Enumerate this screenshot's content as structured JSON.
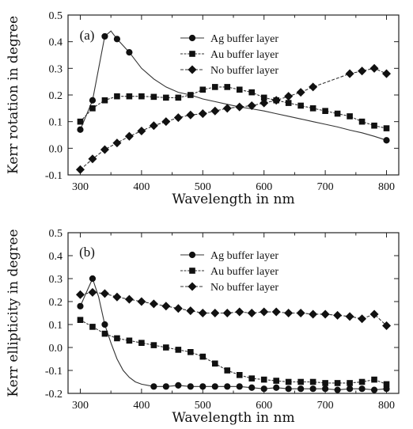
{
  "chart_data": [
    {
      "type": "line",
      "panel_label": "(a)",
      "xlabel": "Wavelength in nm",
      "ylabel": "Kerr rotation in degree",
      "xlim": [
        280,
        820
      ],
      "ylim": [
        -0.1,
        0.5
      ],
      "xticks": [
        300,
        400,
        500,
        600,
        700,
        800
      ],
      "yticks": [
        -0.1,
        0.0,
        0.1,
        0.2,
        0.3,
        0.4,
        0.5
      ],
      "legend_position": "top-right",
      "series": [
        {
          "name": "Ag buffer layer",
          "marker": "circle",
          "x": [
            300,
            320,
            340,
            360,
            380,
            800
          ],
          "y": [
            0.07,
            0.18,
            0.42,
            0.41,
            0.36,
            0.03
          ],
          "curve": [
            [
              300,
              0.07
            ],
            [
              320,
              0.18
            ],
            [
              340,
              0.42
            ],
            [
              350,
              0.44
            ],
            [
              360,
              0.41
            ],
            [
              380,
              0.36
            ],
            [
              400,
              0.3
            ],
            [
              420,
              0.26
            ],
            [
              440,
              0.23
            ],
            [
              460,
              0.21
            ],
            [
              480,
              0.2
            ],
            [
              500,
              0.185
            ],
            [
              520,
              0.175
            ],
            [
              540,
              0.165
            ],
            [
              560,
              0.155
            ],
            [
              580,
              0.148
            ],
            [
              600,
              0.14
            ],
            [
              620,
              0.13
            ],
            [
              640,
              0.12
            ],
            [
              660,
              0.11
            ],
            [
              680,
              0.1
            ],
            [
              700,
              0.09
            ],
            [
              720,
              0.08
            ],
            [
              740,
              0.068
            ],
            [
              760,
              0.058
            ],
            [
              780,
              0.045
            ],
            [
              800,
              0.03
            ]
          ]
        },
        {
          "name": "Au buffer layer",
          "marker": "square",
          "x": [
            300,
            320,
            340,
            360,
            380,
            400,
            420,
            440,
            460,
            480,
            500,
            520,
            540,
            560,
            580,
            600,
            620,
            640,
            660,
            680,
            700,
            720,
            740,
            760,
            780,
            800
          ],
          "y": [
            0.1,
            0.15,
            0.18,
            0.195,
            0.195,
            0.195,
            0.193,
            0.19,
            0.19,
            0.2,
            0.22,
            0.23,
            0.23,
            0.22,
            0.21,
            0.19,
            0.18,
            0.17,
            0.16,
            0.15,
            0.14,
            0.13,
            0.12,
            0.1,
            0.085,
            0.075
          ]
        },
        {
          "name": "No buffer layer",
          "marker": "diamond",
          "x": [
            300,
            320,
            340,
            360,
            380,
            400,
            420,
            440,
            460,
            480,
            500,
            520,
            540,
            560,
            580,
            600,
            620,
            640,
            660,
            680,
            740,
            760,
            780,
            800
          ],
          "y": [
            -0.08,
            -0.04,
            -0.005,
            0.02,
            0.045,
            0.065,
            0.085,
            0.1,
            0.115,
            0.125,
            0.13,
            0.14,
            0.15,
            0.155,
            0.16,
            0.17,
            0.18,
            0.195,
            0.21,
            0.23,
            0.28,
            0.29,
            0.3,
            0.28
          ]
        }
      ]
    },
    {
      "type": "line",
      "panel_label": "(b)",
      "xlabel": "Wavelength in nm",
      "ylabel": "Kerr ellipticity in degree",
      "xlim": [
        280,
        820
      ],
      "ylim": [
        -0.2,
        0.5
      ],
      "xticks": [
        300,
        400,
        500,
        600,
        700,
        800
      ],
      "yticks": [
        -0.2,
        -0.1,
        0.0,
        0.1,
        0.2,
        0.3,
        0.4,
        0.5
      ],
      "legend_position": "top-right",
      "series": [
        {
          "name": "Ag buffer layer",
          "marker": "circle",
          "x": [
            300,
            320,
            340,
            420,
            440,
            460,
            480,
            500,
            520,
            540,
            560,
            580,
            600,
            620,
            640,
            660,
            680,
            700,
            720,
            740,
            760,
            780,
            800
          ],
          "y": [
            0.18,
            0.3,
            0.1,
            -0.17,
            -0.17,
            -0.165,
            -0.17,
            -0.17,
            -0.17,
            -0.17,
            -0.17,
            -0.175,
            -0.18,
            -0.175,
            -0.18,
            -0.18,
            -0.18,
            -0.18,
            -0.185,
            -0.18,
            -0.18,
            -0.185,
            -0.18
          ],
          "curve": [
            [
              300,
              0.18
            ],
            [
              310,
              0.24
            ],
            [
              320,
              0.3
            ],
            [
              330,
              0.22
            ],
            [
              340,
              0.1
            ],
            [
              350,
              0.02
            ],
            [
              360,
              -0.05
            ],
            [
              370,
              -0.1
            ],
            [
              380,
              -0.13
            ],
            [
              390,
              -0.15
            ],
            [
              400,
              -0.16
            ],
            [
              420,
              -0.17
            ],
            [
              440,
              -0.17
            ],
            [
              460,
              -0.165
            ],
            [
              480,
              -0.17
            ],
            [
              500,
              -0.17
            ],
            [
              520,
              -0.17
            ],
            [
              540,
              -0.17
            ],
            [
              560,
              -0.17
            ],
            [
              580,
              -0.175
            ],
            [
              600,
              -0.18
            ],
            [
              620,
              -0.175
            ],
            [
              640,
              -0.18
            ],
            [
              660,
              -0.18
            ],
            [
              680,
              -0.18
            ],
            [
              700,
              -0.18
            ],
            [
              720,
              -0.185
            ],
            [
              740,
              -0.18
            ],
            [
              760,
              -0.18
            ],
            [
              780,
              -0.185
            ],
            [
              800,
              -0.18
            ]
          ]
        },
        {
          "name": "Au buffer layer",
          "marker": "square",
          "x": [
            300,
            320,
            340,
            360,
            380,
            400,
            420,
            440,
            460,
            480,
            500,
            520,
            540,
            560,
            580,
            600,
            620,
            640,
            660,
            680,
            700,
            720,
            740,
            760,
            780,
            800
          ],
          "y": [
            0.12,
            0.09,
            0.06,
            0.04,
            0.03,
            0.02,
            0.01,
            0.0,
            -0.01,
            -0.02,
            -0.04,
            -0.07,
            -0.1,
            -0.12,
            -0.135,
            -0.14,
            -0.145,
            -0.15,
            -0.15,
            -0.15,
            -0.155,
            -0.155,
            -0.155,
            -0.15,
            -0.14,
            -0.16
          ]
        },
        {
          "name": "No buffer layer",
          "marker": "diamond",
          "x": [
            300,
            320,
            340,
            360,
            380,
            400,
            420,
            440,
            460,
            480,
            500,
            520,
            540,
            560,
            580,
            600,
            620,
            640,
            660,
            680,
            700,
            720,
            740,
            760,
            780,
            800
          ],
          "y": [
            0.23,
            0.24,
            0.235,
            0.22,
            0.21,
            0.2,
            0.19,
            0.18,
            0.17,
            0.16,
            0.15,
            0.15,
            0.15,
            0.155,
            0.15,
            0.155,
            0.155,
            0.15,
            0.15,
            0.145,
            0.145,
            0.14,
            0.135,
            0.125,
            0.145,
            0.095
          ]
        }
      ]
    }
  ]
}
